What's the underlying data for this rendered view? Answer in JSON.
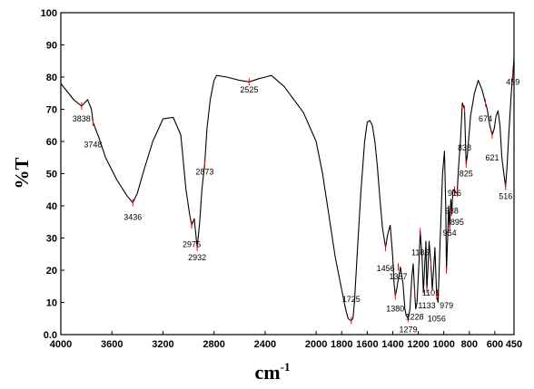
{
  "chart_data": {
    "type": "line",
    "xlabel": "cm",
    "xlabel_superscript": "-1",
    "ylabel": "%T",
    "xlim": [
      4000,
      450
    ],
    "ylim": [
      0,
      100
    ],
    "x_reversed": true,
    "grid": false,
    "legend": "none",
    "x_ticks": [
      4000,
      3600,
      3200,
      2800,
      2400,
      2000,
      1800,
      1600,
      1400,
      1200,
      1000,
      800,
      600,
      450
    ],
    "x_tick_labels": [
      "4000",
      "3600",
      "3200",
      "2800",
      "2400",
      "2000",
      "1800",
      "1600",
      "1400",
      "1200",
      "1000",
      "800",
      "600",
      "450"
    ],
    "y_ticks": [
      0,
      10,
      20,
      30,
      40,
      50,
      60,
      70,
      80,
      90,
      100
    ],
    "y_tick_labels": [
      "0.0",
      "10",
      "20",
      "30",
      "40",
      "50",
      "60",
      "70",
      "80",
      "90",
      "100"
    ],
    "line_color": "#000000",
    "marker_color": "#ff0000",
    "series": [
      {
        "x": [
          4000,
          3900,
          3838,
          3790,
          3760,
          3748,
          3700,
          3650,
          3560,
          3480,
          3436,
          3400,
          3350,
          3280,
          3200,
          3120,
          3060,
          3020,
          2990,
          2975,
          2955,
          2932,
          2912,
          2895,
          2873,
          2855,
          2830,
          2800,
          2780,
          2700,
          2600,
          2525,
          2450,
          2400,
          2350,
          2250,
          2100,
          2000,
          1950,
          1900,
          1850,
          1800,
          1770,
          1750,
          1735,
          1725,
          1712,
          1700,
          1680,
          1650,
          1620,
          1600,
          1580,
          1560,
          1540,
          1520,
          1500,
          1480,
          1456,
          1440,
          1420,
          1400,
          1390,
          1380,
          1370,
          1357,
          1340,
          1320,
          1305,
          1295,
          1279,
          1265,
          1250,
          1240,
          1228,
          1220,
          1210,
          1195,
          1185,
          1170,
          1160,
          1150,
          1140,
          1133,
          1125,
          1115,
          1101,
          1090,
          1080,
          1070,
          1056,
          1045,
          1030,
          1010,
          995,
          985,
          979,
          970,
          962,
          954,
          945,
          938,
          928,
          916,
          905,
          895,
          885,
          870,
          855,
          838,
          825,
          815,
          790,
          760,
          730,
          700,
          674,
          660,
          640,
          621,
          605,
          590,
          575,
          560,
          545,
          530,
          516,
          505,
          490,
          470,
          459,
          450
        ],
        "y": [
          78,
          73,
          71,
          73,
          70,
          66,
          61,
          55,
          48,
          43,
          41,
          44,
          51,
          60,
          67,
          67.5,
          62,
          45,
          37,
          34,
          36,
          27,
          35,
          45,
          53,
          64,
          73,
          79,
          80.5,
          80,
          79,
          78.5,
          79.5,
          80,
          80.5,
          77,
          69,
          60,
          50,
          37,
          24,
          14,
          8,
          5,
          4.5,
          4.4,
          5,
          10,
          24,
          44,
          60,
          66,
          66.5,
          65,
          60,
          52,
          42,
          33,
          27,
          31,
          34,
          24,
          16,
          12,
          14,
          17,
          21,
          16,
          8,
          6,
          5,
          8,
          18,
          22,
          13,
          8,
          10,
          22,
          32,
          24,
          13,
          21,
          29,
          14,
          20,
          29,
          22,
          14,
          20,
          27,
          12,
          10,
          28,
          50,
          57,
          40,
          20,
          30,
          40,
          33,
          42,
          38,
          45,
          45,
          44,
          44,
          52,
          60,
          72,
          70,
          53,
          56,
          68,
          75,
          79,
          76,
          72,
          70,
          65,
          62,
          64,
          68,
          69.5,
          65,
          55,
          50,
          46,
          52,
          63,
          76,
          81,
          86
        ]
      }
    ],
    "annotations": [
      {
        "text": "3838",
        "x": 3838,
        "y": 71,
        "label_y": 67
      },
      {
        "text": "3748",
        "x": 3748,
        "y": 66,
        "label_y": 59
      },
      {
        "text": "3436",
        "x": 3436,
        "y": 41,
        "label_y": 36.5
      },
      {
        "text": "2975",
        "x": 2975,
        "y": 34,
        "label_y": 28
      },
      {
        "text": "2932",
        "x": 2932,
        "y": 27,
        "label_y": 24
      },
      {
        "text": "2873",
        "x": 2873,
        "y": 53,
        "label_y": 50.5
      },
      {
        "text": "2525",
        "x": 2525,
        "y": 78.5,
        "label_y": 76
      },
      {
        "text": "1725",
        "x": 1725,
        "y": 4.4,
        "label_y": 11
      },
      {
        "text": "1456",
        "x": 1456,
        "y": 27,
        "label_y": 20.5
      },
      {
        "text": "1357",
        "x": 1357,
        "y": 21,
        "label_y": 18
      },
      {
        "text": "1380",
        "x": 1380,
        "y": 12,
        "label_y": 8
      },
      {
        "text": "1279",
        "x": 1279,
        "y": 5,
        "label_y": 1.5
      },
      {
        "text": "1228",
        "x": 1228,
        "y": 13,
        "label_y": 5.5
      },
      {
        "text": "1185",
        "x": 1185,
        "y": 32,
        "label_y": 25.5
      },
      {
        "text": "1133",
        "x": 1133,
        "y": 14,
        "label_y": 9
      },
      {
        "text": "1101",
        "x": 1101,
        "y": 22,
        "label_y": 13
      },
      {
        "text": "1056",
        "x": 1056,
        "y": 12,
        "label_y": 5
      },
      {
        "text": "979",
        "x": 979,
        "y": 20,
        "label_y": 9
      },
      {
        "text": "954",
        "x": 954,
        "y": 33,
        "label_y": 31.5
      },
      {
        "text": "938",
        "x": 938,
        "y": 38,
        "label_y": 38.5
      },
      {
        "text": "895",
        "x": 895,
        "y": 44,
        "label_y": 35
      },
      {
        "text": "916",
        "x": 916,
        "y": 45,
        "label_y": 44
      },
      {
        "text": "838",
        "x": 838,
        "y": 70,
        "label_y": 58
      },
      {
        "text": "825",
        "x": 825,
        "y": 53,
        "label_y": 50
      },
      {
        "text": "674",
        "x": 674,
        "y": 72,
        "label_y": 67
      },
      {
        "text": "621",
        "x": 621,
        "y": 62,
        "label_y": 55
      },
      {
        "text": "516",
        "x": 516,
        "y": 46,
        "label_y": 43
      },
      {
        "text": "459",
        "x": 459,
        "y": 81,
        "label_y": 78.5
      }
    ]
  }
}
